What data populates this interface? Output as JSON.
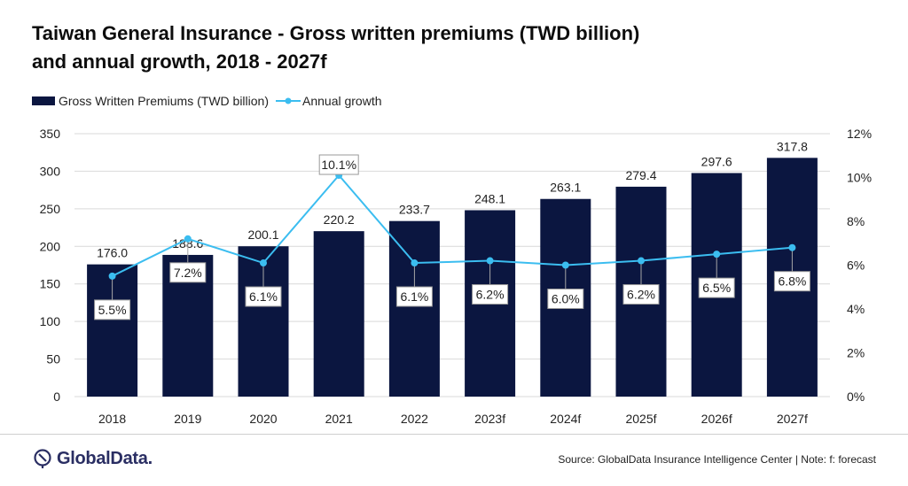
{
  "chart_data": {
    "type": "bar",
    "title": "Taiwan General Insurance - Gross written premiums (TWD billion) and annual growth, 2018 - 2027f",
    "categories": [
      "2018",
      "2019",
      "2020",
      "2021",
      "2022",
      "2023f",
      "2024f",
      "2025f",
      "2026f",
      "2027f"
    ],
    "series": [
      {
        "name": "Gross Written Premiums (TWD billion)",
        "type": "bar",
        "axis": "left",
        "values": [
          176.0,
          188.6,
          200.1,
          220.2,
          233.7,
          248.1,
          263.1,
          279.4,
          297.6,
          317.8
        ],
        "labels": [
          "176.0",
          "188.6",
          "200.1",
          "220.2",
          "233.7",
          "248.1",
          "263.1",
          "279.4",
          "297.6",
          "317.8"
        ],
        "color": "#0b1640"
      },
      {
        "name": "Annual growth",
        "type": "line",
        "axis": "right",
        "values": [
          5.5,
          7.2,
          6.1,
          10.1,
          6.1,
          6.2,
          6.0,
          6.2,
          6.5,
          6.8
        ],
        "labels": [
          "5.5%",
          "7.2%",
          "6.1%",
          "10.1%",
          "6.1%",
          "6.2%",
          "6.0%",
          "6.2%",
          "6.5%",
          "6.8%"
        ],
        "color": "#3bbdf0"
      }
    ],
    "ylim": [
      0,
      350
    ],
    "y_ticks": [
      "0",
      "50",
      "100",
      "150",
      "200",
      "250",
      "300",
      "350"
    ],
    "y2lim": [
      0,
      12
    ],
    "y2_ticks": [
      "0%",
      "2%",
      "4%",
      "6%",
      "8%",
      "10%",
      "12%"
    ],
    "grid": true,
    "legend_position": "top-left"
  },
  "header": {
    "title_line1": "Taiwan General Insurance - Gross written premiums (TWD billion)",
    "title_line2": "and annual growth, 2018 - 2027f"
  },
  "legend": {
    "bar_label": "Gross Written Premiums (TWD billion)",
    "line_label": "Annual growth"
  },
  "footer": {
    "logo_text": "GlobalData.",
    "source": "Source: GlobalData Insurance Intelligence Center | Note: f: forecast"
  },
  "colors": {
    "bar": "#0b1640",
    "line": "#3bbdf0",
    "grid": "#d9d9d9",
    "brand": "#2a2e63"
  }
}
